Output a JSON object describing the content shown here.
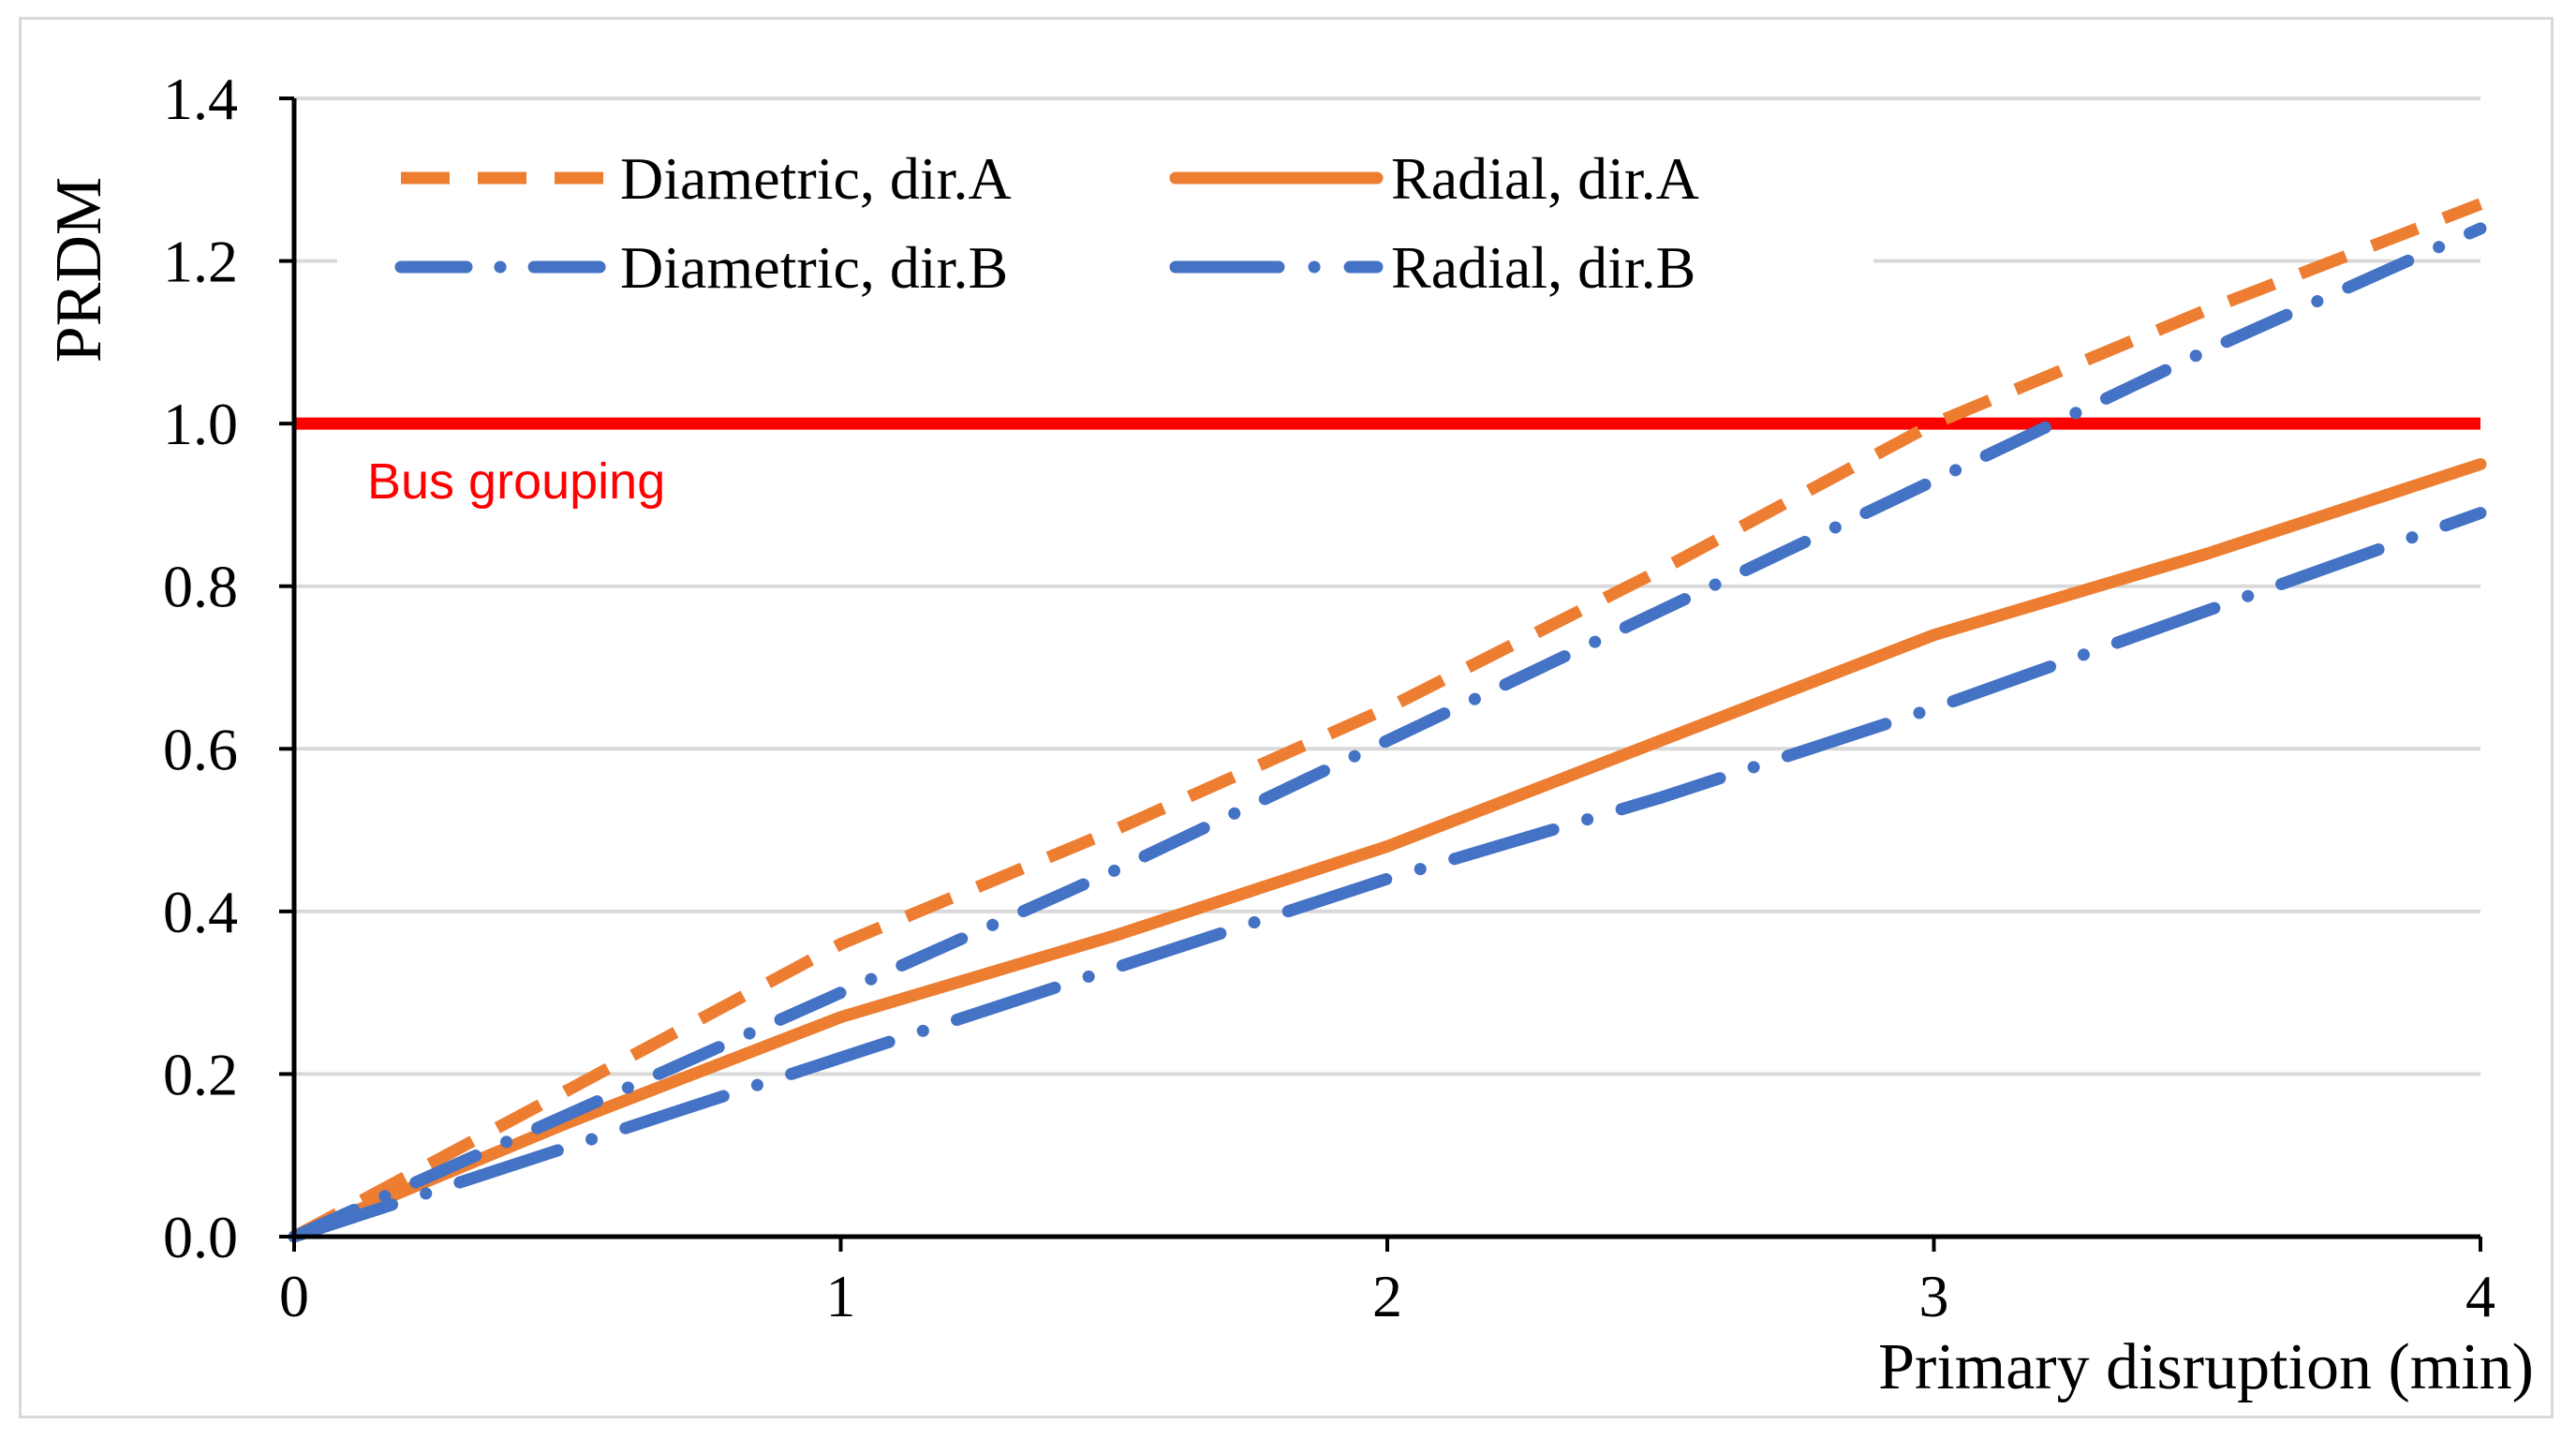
{
  "chart_data": {
    "type": "line",
    "title": "",
    "xlabel": "Primary disruption (min)",
    "ylabel": "PRDM",
    "xlim": [
      0,
      4
    ],
    "ylim": [
      0,
      1.4
    ],
    "x_ticks": [
      0,
      1,
      2,
      3,
      4
    ],
    "x_tick_labels": [
      "0",
      "1",
      "2",
      "3",
      "4"
    ],
    "y_ticks": [
      0,
      0.2,
      0.4,
      0.6,
      0.8,
      1.0,
      1.2,
      1.4
    ],
    "y_tick_labels": [
      "0.0",
      "0.2",
      "0.4",
      "0.6",
      "0.8",
      "1.0",
      "1.2",
      "1.4"
    ],
    "grid": "horizontal",
    "legend_position": "top",
    "series": [
      {
        "name": "Diametric, dir.A",
        "color": "#ED7D31",
        "style": "dash",
        "x": [
          0,
          0.5,
          1,
          1.5,
          2,
          2.5,
          3,
          3.5,
          4
        ],
        "values": [
          0,
          0.18,
          0.36,
          0.5,
          0.65,
          0.82,
          1.0,
          1.14,
          1.27
        ]
      },
      {
        "name": "Radial, dir.A",
        "color": "#ED7D31",
        "style": "solid",
        "x": [
          0,
          0.5,
          1,
          1.5,
          2,
          2.5,
          3,
          3.5,
          4
        ],
        "values": [
          0,
          0.14,
          0.27,
          0.37,
          0.48,
          0.61,
          0.74,
          0.84,
          0.95
        ]
      },
      {
        "name": "Diametric, dir.B",
        "color": "#4472C4",
        "style": "dash-dot",
        "x": [
          0,
          0.5,
          1,
          1.5,
          2,
          2.5,
          3,
          3.5,
          4
        ],
        "values": [
          0,
          0.15,
          0.3,
          0.45,
          0.61,
          0.77,
          0.93,
          1.09,
          1.24
        ]
      },
      {
        "name": "Radial, dir.B",
        "color": "#4472C4",
        "style": "long-dash-dot",
        "x": [
          0,
          0.5,
          1,
          1.5,
          2,
          2.5,
          3,
          3.5,
          4
        ],
        "values": [
          0,
          0.11,
          0.22,
          0.33,
          0.44,
          0.54,
          0.65,
          0.77,
          0.89
        ]
      }
    ],
    "reference_line": {
      "label": "Bus grouping",
      "value": 1.0,
      "color": "#FF0000"
    }
  }
}
